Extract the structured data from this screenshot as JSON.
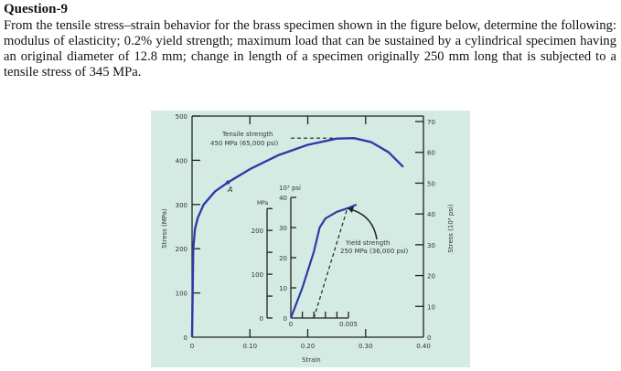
{
  "question": {
    "title": "Question-9",
    "body": "From the tensile stress–strain behavior for the brass specimen shown in the figure below, determine the following: modulus of elasticity; 0.2% yield strength; maximum load that can be sustained by a cylindrical specimen having an original diameter of 12.8 mm; change in length of a specimen originally 250 mm long that is subjected to a tensile stress of 345 MPa."
  },
  "colors": {
    "figure_bg": "#d4ebe3",
    "curve": "#2f3aa8",
    "axis": "#222222"
  },
  "chart_data": [
    {
      "type": "line",
      "xlabel": "Strain",
      "ylabel": "Stress (MPa)",
      "ylabel_right": "Stress (10³ psi)",
      "xlim": [
        0,
        0.4
      ],
      "ylim": [
        0,
        500
      ],
      "ylim_right": [
        0,
        70
      ],
      "x_ticks": [
        "0",
        "0.10",
        "0.20",
        "0.30",
        "0.40"
      ],
      "y_ticks": [
        "0",
        "100",
        "200",
        "300",
        "400",
        "500"
      ],
      "y_ticks_right": [
        "0",
        "10",
        "20",
        "30",
        "40",
        "50",
        "60",
        "70"
      ],
      "series": [
        {
          "x": [
            0,
            0.002,
            0.005,
            0.01,
            0.02,
            0.04,
            0.062,
            0.1,
            0.15,
            0.2,
            0.25,
            0.28,
            0.31,
            0.34,
            0.365
          ],
          "y": [
            0,
            200,
            245,
            270,
            300,
            330,
            350,
            380,
            412,
            435,
            449,
            450,
            441,
            418,
            385
          ]
        }
      ],
      "annotations": {
        "tensile_line1": "Tensile strength",
        "tensile_line2": "450 MPa (65,000 psi)",
        "point_label": "A",
        "tensile_strength_mpa": 450,
        "point_a": [
          0.062,
          350
        ]
      }
    },
    {
      "type": "line",
      "inset": true,
      "ylabel_left": "MPa",
      "ylabel_right": "10³ psi",
      "xlim": [
        0,
        0.005
      ],
      "ylim": [
        0,
        40
      ],
      "x_ticks": [
        "0",
        "0.005"
      ],
      "y_ticks_mpa": [
        "0",
        "100",
        "200"
      ],
      "y_ticks_ksi": [
        "0",
        "10",
        "20",
        "30",
        "40"
      ],
      "series": [
        {
          "x": [
            0,
            0.001,
            0.002,
            0.0025,
            0.003,
            0.004,
            0.005,
            0.0057
          ],
          "y": [
            0,
            10,
            22,
            30,
            33,
            35.2,
            36.5,
            37.6
          ]
        }
      ],
      "offset_line": {
        "x": [
          0.002,
          0.0049
        ],
        "y": [
          0,
          36.3
        ]
      },
      "annotations": {
        "yield_line1": "Yield strength",
        "yield_line2": "250 MPa (36,000 psi)",
        "yield_strength_mpa": 250
      }
    }
  ]
}
